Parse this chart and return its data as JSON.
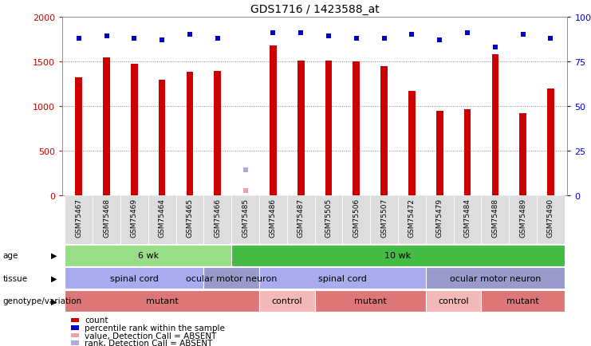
{
  "title": "GDS1716 / 1423588_at",
  "samples": [
    "GSM75467",
    "GSM75468",
    "GSM75469",
    "GSM75464",
    "GSM75465",
    "GSM75466",
    "GSM75485",
    "GSM75486",
    "GSM75487",
    "GSM75505",
    "GSM75506",
    "GSM75507",
    "GSM75472",
    "GSM75479",
    "GSM75484",
    "GSM75488",
    "GSM75489",
    "GSM75490"
  ],
  "counts": [
    1320,
    1540,
    1470,
    1290,
    1380,
    1390,
    55,
    1680,
    1510,
    1510,
    1500,
    1440,
    1170,
    940,
    960,
    1580,
    920,
    1190
  ],
  "absent_count_idx": [
    6
  ],
  "percentile_ranks": [
    88,
    89,
    88,
    87,
    90,
    88,
    14,
    91,
    91,
    89,
    88,
    88,
    90,
    87,
    91,
    83,
    90,
    88
  ],
  "absent_rank_idx": [
    6
  ],
  "bar_color": "#cc0000",
  "absent_bar_color": "#f4a0a0",
  "dot_color": "#0000cc",
  "absent_dot_color": "#aaaadd",
  "ylim_left": [
    0,
    2000
  ],
  "ylim_right": [
    0,
    100
  ],
  "yticks_left": [
    0,
    500,
    1000,
    1500,
    2000
  ],
  "yticks_right": [
    0,
    25,
    50,
    75,
    100
  ],
  "age_groups": [
    {
      "label": "6 wk",
      "start": 0,
      "end": 6,
      "color": "#99dd88"
    },
    {
      "label": "10 wk",
      "start": 6,
      "end": 18,
      "color": "#44bb44"
    }
  ],
  "tissue_groups": [
    {
      "label": "spinal cord",
      "start": 0,
      "end": 5,
      "color": "#aaaaee"
    },
    {
      "label": "ocular motor neuron",
      "start": 5,
      "end": 7,
      "color": "#9999cc"
    },
    {
      "label": "spinal cord",
      "start": 7,
      "end": 13,
      "color": "#aaaaee"
    },
    {
      "label": "ocular motor neuron",
      "start": 13,
      "end": 18,
      "color": "#9999cc"
    }
  ],
  "genotype_groups": [
    {
      "label": "mutant",
      "start": 0,
      "end": 7,
      "color": "#dd7777"
    },
    {
      "label": "control",
      "start": 7,
      "end": 9,
      "color": "#f4b8b8"
    },
    {
      "label": "mutant",
      "start": 9,
      "end": 13,
      "color": "#dd7777"
    },
    {
      "label": "control",
      "start": 13,
      "end": 15,
      "color": "#f4b8b8"
    },
    {
      "label": "mutant",
      "start": 15,
      "end": 18,
      "color": "#dd7777"
    }
  ],
  "legend_items": [
    {
      "label": "count",
      "color": "#cc0000"
    },
    {
      "label": "percentile rank within the sample",
      "color": "#0000cc"
    },
    {
      "label": "value, Detection Call = ABSENT",
      "color": "#f4a0a0"
    },
    {
      "label": "rank, Detection Call = ABSENT",
      "color": "#aaaadd"
    }
  ],
  "row_labels": [
    "age",
    "tissue",
    "genotype/variation"
  ],
  "background_color": "#ffffff",
  "grid_color": "#888888",
  "xtick_bg": "#dddddd"
}
